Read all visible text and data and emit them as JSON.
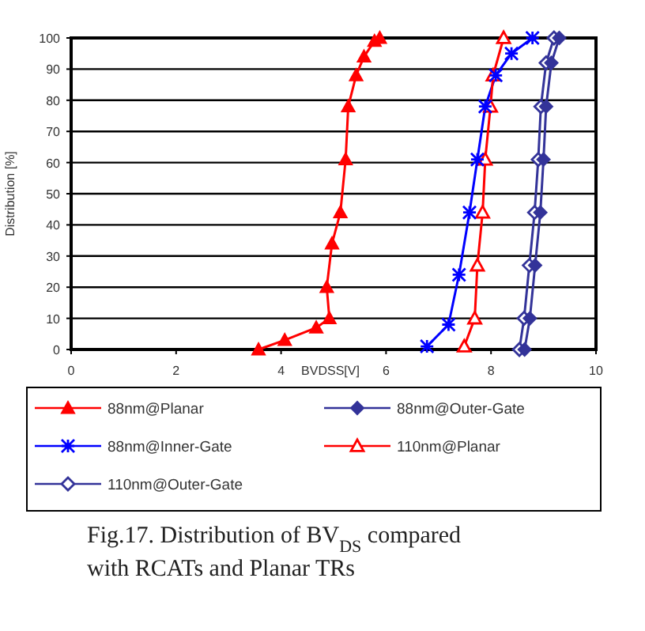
{
  "chart_data": {
    "type": "line",
    "xlabel": "BVDSS[V]",
    "ylabel": "Distribution [%]",
    "xlim": [
      0,
      10
    ],
    "xticks": [
      0,
      2,
      4,
      6,
      8,
      10
    ],
    "ylim": [
      0,
      100
    ],
    "yticks": [
      0,
      10,
      20,
      30,
      40,
      50,
      60,
      70,
      80,
      90,
      100
    ],
    "grid": "y",
    "legend": "bottom",
    "series": [
      {
        "name": "88nm@Planar",
        "color": "#ff0000",
        "marker": "triangle",
        "x": [
          3.57,
          4.07,
          4.67,
          4.92,
          4.87,
          4.97,
          5.13,
          5.23,
          5.28,
          5.43,
          5.58,
          5.78,
          5.88
        ],
        "values": [
          0,
          3,
          7,
          10,
          20,
          34,
          44,
          61,
          78,
          88,
          94,
          99,
          100
        ]
      },
      {
        "name": "88nm@Outer-Gate",
        "color": "#333399",
        "marker": "diamond",
        "x": [
          8.64,
          8.74,
          8.84,
          8.94,
          9.0,
          9.05,
          9.15,
          9.3
        ],
        "values": [
          0,
          10,
          27,
          44,
          61,
          78,
          92,
          100
        ]
      },
      {
        "name": "88nm@Inner-Gate",
        "color": "#0000ff",
        "marker": "cross",
        "x": [
          6.78,
          7.19,
          7.39,
          7.59,
          7.74,
          7.89,
          8.09,
          8.39,
          8.79
        ],
        "values": [
          1,
          8,
          24,
          44,
          61,
          78,
          88,
          95,
          100
        ]
      },
      {
        "name": "110nm@Planar",
        "color": "#ff0000",
        "marker": "triangle-open",
        "x": [
          7.49,
          7.69,
          7.74,
          7.84,
          7.89,
          7.99,
          8.04,
          8.24
        ],
        "values": [
          1,
          10,
          27,
          44,
          61,
          78,
          88,
          100
        ]
      },
      {
        "name": "110nm@Outer-Gate",
        "color": "#333399",
        "marker": "diamond-open",
        "x": [
          8.54,
          8.63,
          8.73,
          8.83,
          8.9,
          8.95,
          9.05,
          9.2
        ],
        "values": [
          0,
          10,
          27,
          44,
          61,
          78,
          92,
          100
        ]
      }
    ],
    "annotations": [
      "Fig.17. Distribution of BV$_{DS}$ compared with RCATs and Planar TRs"
    ]
  }
}
